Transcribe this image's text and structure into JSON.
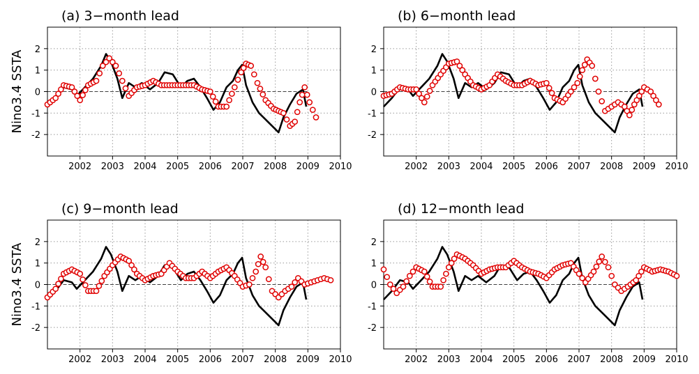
{
  "ylabel": "Nino3.4  SSTA",
  "colors": {
    "observed": "#000000",
    "forecast": "#e00000"
  },
  "chart_data": [
    {
      "type": "line",
      "title": "(a)  3−month  lead",
      "xlim": [
        2001.0,
        2010.0
      ],
      "ylim": [
        -3,
        3
      ],
      "x_ticks": [
        2002,
        2003,
        2004,
        2005,
        2006,
        2007,
        2008,
        2009,
        2010
      ],
      "y_ticks": [
        -2,
        -1,
        0,
        1,
        2
      ],
      "observed": {
        "x": [
          2001.0,
          2001.25,
          2001.5,
          2001.75,
          2001.9,
          2002.15,
          2002.4,
          2002.65,
          2002.8,
          2002.95,
          2003.15,
          2003.3,
          2003.5,
          2003.7,
          2003.9,
          2004.15,
          2004.4,
          2004.6,
          2004.85,
          2005.1,
          2005.3,
          2005.5,
          2005.7,
          2005.9,
          2006.1,
          2006.3,
          2006.5,
          2006.7,
          2006.85,
          2006.98,
          2007.1,
          2007.3,
          2007.5,
          2007.7,
          2007.9,
          2008.1,
          2008.25,
          2008.45,
          2008.65,
          2008.85,
          2008.95
        ],
        "y": [
          -0.7,
          -0.3,
          0.2,
          0.1,
          -0.2,
          0.2,
          0.6,
          1.2,
          1.75,
          1.4,
          0.6,
          -0.3,
          0.4,
          0.2,
          0.4,
          0.1,
          0.4,
          0.9,
          0.8,
          0.2,
          0.5,
          0.6,
          0.2,
          -0.3,
          -0.85,
          -0.5,
          0.2,
          0.5,
          1.0,
          1.25,
          0.3,
          -0.5,
          -1.0,
          -1.3,
          -1.6,
          -1.9,
          -1.2,
          -0.6,
          -0.1,
          0.1,
          -0.7
        ]
      },
      "forecast": {
        "x": [
          2001.0,
          2001.25,
          2001.5,
          2001.75,
          2002.0,
          2002.25,
          2002.5,
          2002.7,
          2002.9,
          2003.1,
          2003.3,
          2003.5,
          2003.75,
          2004.0,
          2004.25,
          2004.5,
          2004.75,
          2005.0,
          2005.25,
          2005.5,
          2005.75,
          2006.0,
          2006.25,
          2006.5,
          2006.75,
          2006.95,
          2007.1,
          2007.25,
          2007.45,
          2007.7,
          2007.95,
          2008.1,
          2008.25,
          2008.45,
          2008.6,
          2008.75,
          2008.9,
          2009.05,
          2009.25
        ],
        "y": [
          -0.6,
          -0.3,
          0.3,
          0.2,
          -0.4,
          0.3,
          0.5,
          1.2,
          1.55,
          1.2,
          0.5,
          -0.2,
          0.2,
          0.3,
          0.5,
          0.3,
          0.3,
          0.3,
          0.3,
          0.3,
          0.1,
          0.0,
          -0.7,
          -0.7,
          0.2,
          0.9,
          1.3,
          1.2,
          0.4,
          -0.4,
          -0.8,
          -0.9,
          -1.0,
          -1.6,
          -1.4,
          -0.5,
          0.2,
          -0.5,
          -1.2
        ]
      }
    },
    {
      "type": "line",
      "title": "(b)  6−month  lead",
      "xlim": [
        2001.0,
        2010.0
      ],
      "ylim": [
        -3,
        3
      ],
      "x_ticks": [
        2002,
        2003,
        2004,
        2005,
        2006,
        2007,
        2008,
        2009,
        2010
      ],
      "y_ticks": [
        -2,
        -1,
        0,
        1,
        2
      ],
      "observed": {
        "x": [
          2001.0,
          2001.25,
          2001.5,
          2001.75,
          2001.9,
          2002.15,
          2002.4,
          2002.65,
          2002.8,
          2002.95,
          2003.15,
          2003.3,
          2003.5,
          2003.7,
          2003.9,
          2004.15,
          2004.4,
          2004.6,
          2004.85,
          2005.1,
          2005.3,
          2005.5,
          2005.7,
          2005.9,
          2006.1,
          2006.3,
          2006.5,
          2006.7,
          2006.85,
          2006.98,
          2007.1,
          2007.3,
          2007.5,
          2007.7,
          2007.9,
          2008.1,
          2008.25,
          2008.45,
          2008.65,
          2008.85,
          2008.95
        ],
        "y": [
          -0.7,
          -0.3,
          0.2,
          0.1,
          -0.2,
          0.2,
          0.6,
          1.2,
          1.75,
          1.4,
          0.6,
          -0.3,
          0.4,
          0.2,
          0.4,
          0.1,
          0.4,
          0.9,
          0.8,
          0.2,
          0.5,
          0.6,
          0.2,
          -0.3,
          -0.85,
          -0.5,
          0.2,
          0.5,
          1.0,
          1.25,
          0.3,
          -0.5,
          -1.0,
          -1.3,
          -1.6,
          -1.9,
          -1.2,
          -0.6,
          -0.1,
          0.1,
          -0.7
        ]
      },
      "forecast": {
        "x": [
          2001.0,
          2001.25,
          2001.5,
          2001.75,
          2002.0,
          2002.25,
          2002.5,
          2002.75,
          2003.0,
          2003.25,
          2003.5,
          2003.75,
          2004.0,
          2004.25,
          2004.5,
          2004.75,
          2005.0,
          2005.25,
          2005.5,
          2005.75,
          2006.0,
          2006.25,
          2006.5,
          2006.75,
          2006.95,
          2007.1,
          2007.25,
          2007.4,
          2007.6,
          2007.8,
          2008.0,
          2008.2,
          2008.4,
          2008.55,
          2008.7,
          2008.85,
          2009.0,
          2009.2,
          2009.45
        ],
        "y": [
          -0.2,
          -0.1,
          0.2,
          0.1,
          0.1,
          -0.5,
          0.3,
          0.8,
          1.3,
          1.4,
          0.8,
          0.3,
          0.1,
          0.3,
          0.8,
          0.5,
          0.3,
          0.3,
          0.5,
          0.3,
          0.4,
          -0.3,
          -0.5,
          0.0,
          0.4,
          1.0,
          1.5,
          1.2,
          0.0,
          -0.9,
          -0.7,
          -0.5,
          -0.7,
          -1.1,
          -0.6,
          -0.2,
          0.2,
          0.0,
          -0.6
        ]
      }
    },
    {
      "type": "line",
      "title": "(c)  9−month  lead",
      "xlim": [
        2001.0,
        2010.0
      ],
      "ylim": [
        -3,
        3
      ],
      "x_ticks": [
        2002,
        2003,
        2004,
        2005,
        2006,
        2007,
        2008,
        2009,
        2010
      ],
      "y_ticks": [
        -2,
        -1,
        0,
        1,
        2
      ],
      "observed": {
        "x": [
          2001.0,
          2001.25,
          2001.5,
          2001.75,
          2001.9,
          2002.15,
          2002.4,
          2002.65,
          2002.8,
          2002.95,
          2003.15,
          2003.3,
          2003.5,
          2003.7,
          2003.9,
          2004.15,
          2004.4,
          2004.6,
          2004.85,
          2005.1,
          2005.3,
          2005.5,
          2005.7,
          2005.9,
          2006.1,
          2006.3,
          2006.5,
          2006.7,
          2006.85,
          2006.98,
          2007.1,
          2007.3,
          2007.5,
          2007.7,
          2007.9,
          2008.1,
          2008.25,
          2008.45,
          2008.65,
          2008.85,
          2008.95
        ],
        "y": [
          -0.7,
          -0.3,
          0.2,
          0.1,
          -0.2,
          0.2,
          0.6,
          1.2,
          1.75,
          1.4,
          0.6,
          -0.3,
          0.4,
          0.2,
          0.4,
          0.1,
          0.4,
          0.9,
          0.8,
          0.2,
          0.5,
          0.6,
          0.2,
          -0.3,
          -0.85,
          -0.5,
          0.2,
          0.5,
          1.0,
          1.25,
          0.3,
          -0.5,
          -1.0,
          -1.3,
          -1.6,
          -1.9,
          -1.2,
          -0.6,
          -0.1,
          0.1,
          -0.7
        ]
      },
      "forecast": {
        "x": [
          2001.0,
          2001.25,
          2001.5,
          2001.75,
          2002.0,
          2002.25,
          2002.5,
          2002.75,
          2003.0,
          2003.25,
          2003.5,
          2003.75,
          2004.0,
          2004.25,
          2004.5,
          2004.75,
          2005.0,
          2005.25,
          2005.5,
          2005.75,
          2006.0,
          2006.25,
          2006.5,
          2006.75,
          2007.0,
          2007.2,
          2007.4,
          2007.55,
          2007.7,
          2007.9,
          2008.1,
          2008.3,
          2008.5,
          2008.7,
          2008.9,
          2009.1,
          2009.3,
          2009.5,
          2009.7
        ],
        "y": [
          -0.6,
          -0.2,
          0.5,
          0.7,
          0.5,
          -0.3,
          -0.3,
          0.4,
          0.9,
          1.3,
          1.1,
          0.5,
          0.2,
          0.4,
          0.5,
          1.0,
          0.6,
          0.3,
          0.3,
          0.6,
          0.3,
          0.6,
          0.8,
          0.4,
          -0.1,
          0.0,
          0.6,
          1.3,
          0.8,
          -0.3,
          -0.6,
          -0.3,
          -0.1,
          0.3,
          0.0,
          0.1,
          0.2,
          0.3,
          0.2
        ]
      }
    },
    {
      "type": "line",
      "title": "(d)  12−month  lead",
      "xlim": [
        2001.0,
        2010.0
      ],
      "ylim": [
        -3,
        3
      ],
      "x_ticks": [
        2002,
        2003,
        2004,
        2005,
        2006,
        2007,
        2008,
        2009,
        2010
      ],
      "y_ticks": [
        -2,
        -1,
        0,
        1,
        2
      ],
      "observed": {
        "x": [
          2001.0,
          2001.25,
          2001.5,
          2001.75,
          2001.9,
          2002.15,
          2002.4,
          2002.65,
          2002.8,
          2002.95,
          2003.15,
          2003.3,
          2003.5,
          2003.7,
          2003.9,
          2004.15,
          2004.4,
          2004.6,
          2004.85,
          2005.1,
          2005.3,
          2005.5,
          2005.7,
          2005.9,
          2006.1,
          2006.3,
          2006.5,
          2006.7,
          2006.85,
          2006.98,
          2007.1,
          2007.3,
          2007.5,
          2007.7,
          2007.9,
          2008.1,
          2008.25,
          2008.45,
          2008.65,
          2008.85,
          2008.95
        ],
        "y": [
          -0.7,
          -0.3,
          0.2,
          0.1,
          -0.2,
          0.2,
          0.6,
          1.2,
          1.75,
          1.4,
          0.6,
          -0.3,
          0.4,
          0.2,
          0.4,
          0.1,
          0.4,
          0.9,
          0.8,
          0.2,
          0.5,
          0.6,
          0.2,
          -0.3,
          -0.85,
          -0.5,
          0.2,
          0.5,
          1.0,
          1.25,
          0.3,
          -0.5,
          -1.0,
          -1.3,
          -1.6,
          -1.9,
          -1.2,
          -0.6,
          -0.1,
          0.1,
          -0.7
        ]
      },
      "forecast": {
        "x": [
          2001.0,
          2001.2,
          2001.4,
          2001.6,
          2001.8,
          2002.0,
          2002.25,
          2002.5,
          2002.75,
          2003.0,
          2003.25,
          2003.5,
          2003.75,
          2004.0,
          2004.25,
          2004.5,
          2004.75,
          2005.0,
          2005.25,
          2005.5,
          2005.75,
          2006.0,
          2006.25,
          2006.5,
          2006.75,
          2007.0,
          2007.2,
          2007.45,
          2007.7,
          2007.9,
          2008.1,
          2008.3,
          2008.5,
          2008.75,
          2009.0,
          2009.25,
          2009.5,
          2009.75,
          2010.0
        ],
        "y": [
          0.7,
          0.0,
          -0.4,
          -0.1,
          0.4,
          0.8,
          0.6,
          -0.1,
          -0.1,
          0.8,
          1.4,
          1.2,
          0.9,
          0.5,
          0.7,
          0.8,
          0.8,
          1.1,
          0.8,
          0.6,
          0.5,
          0.3,
          0.7,
          0.9,
          1.0,
          0.5,
          0.1,
          0.6,
          1.3,
          0.8,
          0.0,
          -0.3,
          -0.1,
          0.2,
          0.8,
          0.6,
          0.7,
          0.6,
          0.4
        ]
      }
    }
  ]
}
